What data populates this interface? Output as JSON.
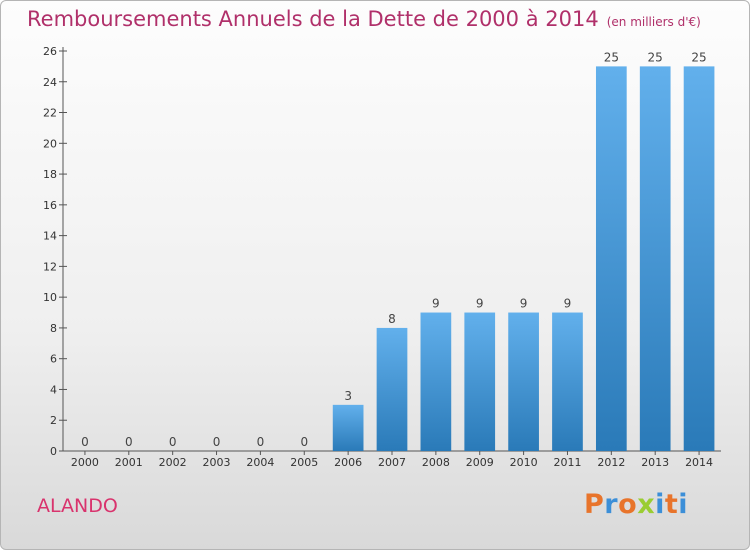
{
  "title": "Remboursements Annuels de la Dette de 2000 à 2014",
  "subtitle": "(en milliers d'€)",
  "location": "ALANDO",
  "brand": {
    "text": "Proxiti",
    "colors": [
      "#e8742b",
      "#3c8fd8",
      "#e8742b",
      "#9acd32",
      "#3c8fd8",
      "#e8742b",
      "#3c8fd8"
    ]
  },
  "colors": {
    "title": "#b0306a",
    "bar_light": "#62b0ec",
    "bar_dark": "#2a7ab8"
  },
  "chart_data": {
    "type": "bar",
    "categories": [
      "2000",
      "2001",
      "2002",
      "2003",
      "2004",
      "2005",
      "2006",
      "2007",
      "2008",
      "2009",
      "2010",
      "2011",
      "2012",
      "2013",
      "2014"
    ],
    "values": [
      0,
      0,
      0,
      0,
      0,
      0,
      3,
      8,
      9,
      9,
      9,
      9,
      25,
      25,
      25
    ],
    "data_labels": [
      "0",
      "0",
      "0",
      "0",
      "0",
      "0",
      "3",
      "8",
      "9",
      "9",
      "9",
      "9",
      "25",
      "25",
      "25"
    ],
    "title": "Remboursements Annuels de la Dette de 2000 à 2014",
    "ylim": [
      0,
      26
    ],
    "yticks": [
      0,
      2,
      4,
      6,
      8,
      10,
      12,
      14,
      16,
      18,
      20,
      22,
      24,
      26
    ],
    "grid": false
  }
}
